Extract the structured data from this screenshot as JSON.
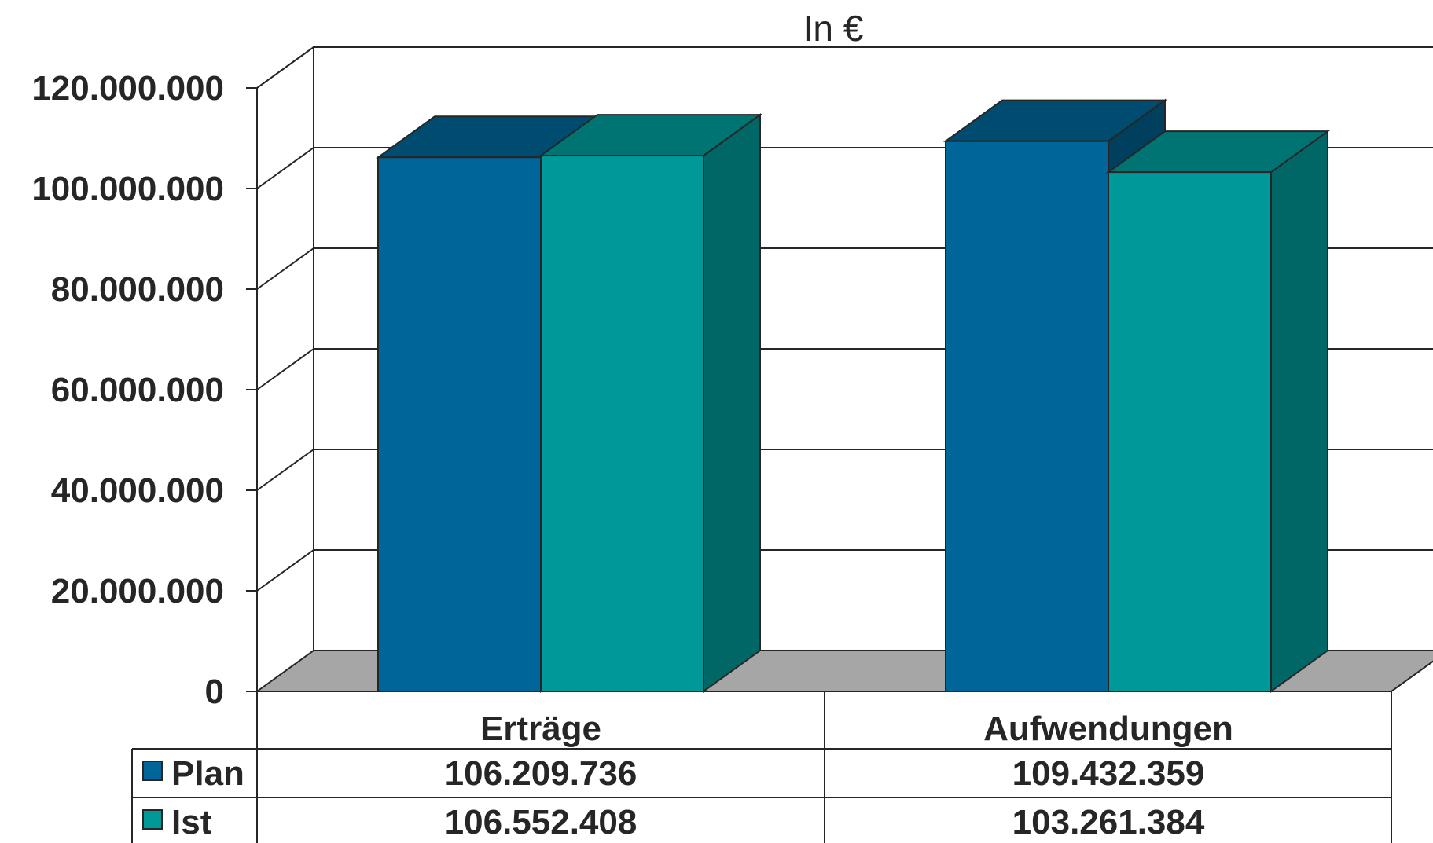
{
  "chart_data": {
    "type": "bar",
    "title": "In €",
    "categories": [
      "Erträge",
      "Aufwendungen"
    ],
    "series": [
      {
        "name": "Plan",
        "values": [
          106209736,
          109432359
        ],
        "value_labels": [
          "106.209.736",
          "109.432.359"
        ]
      },
      {
        "name": "Ist",
        "values": [
          106552408,
          103261384
        ],
        "value_labels": [
          "106.552.408",
          "103.261.384"
        ]
      }
    ],
    "y_ticks": [
      {
        "value": 0,
        "label": "0"
      },
      {
        "value": 20000000,
        "label": "20.000.000"
      },
      {
        "value": 40000000,
        "label": "40.000.000"
      },
      {
        "value": 60000000,
        "label": "60.000.000"
      },
      {
        "value": 80000000,
        "label": "80.000.000"
      },
      {
        "value": 100000000,
        "label": "100.000.000"
      },
      {
        "value": 120000000,
        "label": "120.000.000"
      }
    ],
    "ylim": [
      0,
      120000000
    ],
    "grid": true,
    "three_d": true,
    "legend": "data-table",
    "colors": {
      "Plan": {
        "front": "#006699",
        "top": "#004C70",
        "side": "#003F5E"
      },
      "Ist": {
        "front": "#009999",
        "top": "#007373",
        "side": "#006666"
      },
      "floor": "#A6A6A6",
      "lines": "#262626"
    }
  }
}
